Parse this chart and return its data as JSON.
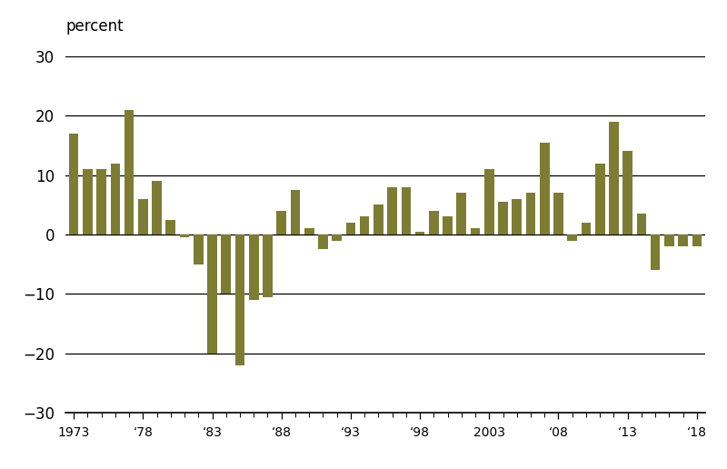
{
  "years": [
    1973,
    1974,
    1975,
    1976,
    1977,
    1978,
    1979,
    1980,
    1981,
    1982,
    1983,
    1984,
    1985,
    1986,
    1987,
    1988,
    1989,
    1990,
    1991,
    1992,
    1993,
    1994,
    1995,
    1996,
    1997,
    1998,
    1999,
    2000,
    2001,
    2002,
    2003,
    2004,
    2005,
    2006,
    2007,
    2008,
    2009,
    2010,
    2011,
    2012,
    2013,
    2014,
    2015,
    2016,
    2017,
    2018
  ],
  "values": [
    17,
    11,
    11,
    12,
    21,
    6,
    9,
    2.5,
    -0.5,
    -5,
    -20,
    -10,
    -22,
    -11,
    -10.5,
    4,
    7.5,
    1,
    -2.5,
    -1,
    2,
    3,
    5,
    8,
    8,
    0.5,
    4,
    3,
    7,
    1,
    11,
    5.5,
    6,
    7,
    15.5,
    7,
    -1,
    2,
    12,
    19,
    14,
    3.5,
    -6,
    -2,
    -2,
    -2
  ],
  "bar_color": "#7d7c35",
  "ylabel": "percent",
  "yticks": [
    -30,
    -20,
    -10,
    0,
    10,
    20,
    30
  ],
  "ylim": [
    -30,
    30
  ],
  "xlim": [
    1972.4,
    2018.6
  ],
  "xtick_labels": [
    "1973",
    "‘78",
    "‘83",
    "‘88",
    "‘93",
    "‘98",
    "2003",
    "‘08",
    "‘13",
    "‘18"
  ],
  "xtick_positions": [
    1973,
    1978,
    1983,
    1988,
    1993,
    1998,
    2003,
    2008,
    2013,
    2018
  ],
  "background_color": "#ffffff",
  "grid_color": "#000000",
  "bar_width": 0.7
}
